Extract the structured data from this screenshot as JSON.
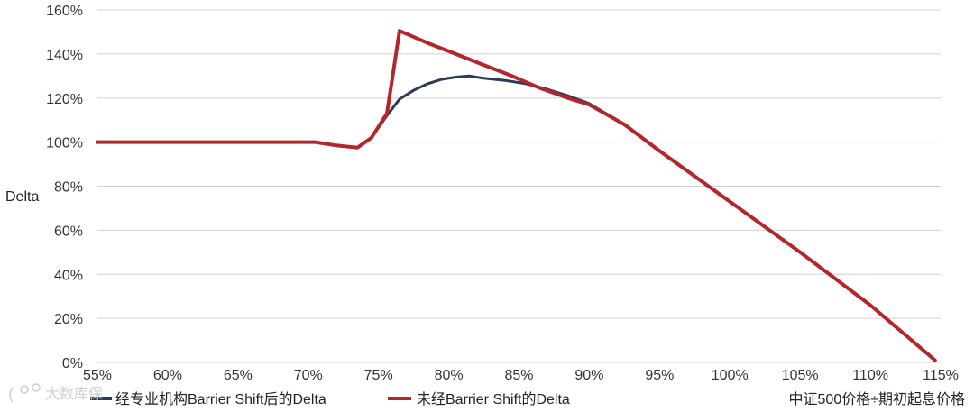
{
  "chart_data": {
    "type": "line",
    "title": "",
    "xlabel": "中证500价格÷期初起息价格",
    "ylabel": "Delta",
    "xlim": [
      55,
      115
    ],
    "ylim": [
      0,
      160
    ],
    "x_ticks": [
      "55%",
      "60%",
      "65%",
      "70%",
      "75%",
      "80%",
      "85%",
      "90%",
      "95%",
      "100%",
      "105%",
      "110%",
      "115%"
    ],
    "y_ticks": [
      "0%",
      "20%",
      "40%",
      "60%",
      "80%",
      "100%",
      "120%",
      "140%",
      "160%"
    ],
    "grid": true,
    "legend_position": "bottom-left",
    "series": [
      {
        "name": "经专业机构Barrier Shift后的Delta",
        "color": "#2b3a55",
        "x": [
          55,
          70.5,
          72,
          73.5,
          74.5,
          75.6,
          76.5,
          77.5,
          78.5,
          79.5,
          80.5,
          81.5,
          82.5,
          84,
          85.5,
          87,
          88.5,
          90,
          92.5,
          95,
          100,
          105,
          110,
          114.6
        ],
        "y": [
          100,
          100,
          98.5,
          97.5,
          102,
          112,
          119.5,
          123.5,
          126.5,
          128.5,
          129.5,
          130,
          129,
          128,
          126.5,
          124,
          121,
          117.5,
          108,
          96,
          73,
          50,
          26,
          1
        ]
      },
      {
        "name": "未经Barrier Shift的Delta",
        "color": "#b1272d",
        "x": [
          55,
          70.5,
          72,
          73.5,
          74.5,
          75.6,
          76.5,
          78.5,
          80.5,
          82.5,
          84.5,
          86.5,
          88.5,
          90,
          92.5,
          95,
          100,
          105,
          110,
          114.6
        ],
        "y": [
          100,
          100,
          98.5,
          97.5,
          102,
          113,
          150.5,
          145,
          140,
          135,
          130,
          124.5,
          120,
          117,
          108,
          96,
          73,
          50,
          26,
          1
        ]
      }
    ]
  },
  "watermark": "大数库保"
}
